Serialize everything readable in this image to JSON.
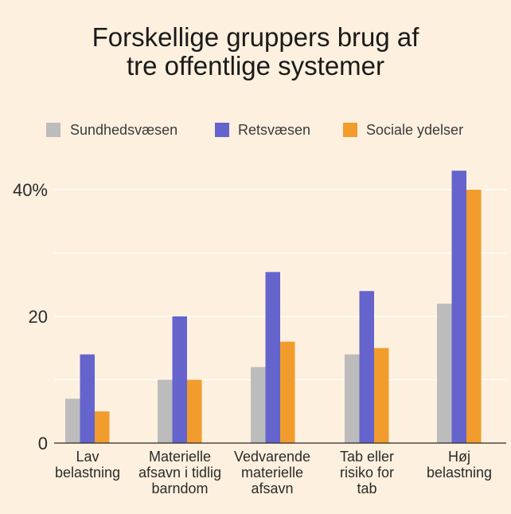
{
  "chart_data": {
    "type": "bar",
    "title_lines": [
      "Forskellige gruppers brug af",
      "tre offentlige systemer"
    ],
    "categories": [
      [
        "Lav",
        "belastning"
      ],
      [
        "Materielle",
        "afsavn i tidlig",
        "barndom"
      ],
      [
        "Vedvarende",
        "materielle",
        "afsavn"
      ],
      [
        "Tab eller",
        "risiko for",
        "tab"
      ],
      [
        "Høj",
        "belastning"
      ]
    ],
    "series": [
      {
        "name": "Sundhedsvæsen",
        "color": "#bcbcbc",
        "values": [
          7,
          10,
          12,
          14,
          22
        ]
      },
      {
        "name": "Retsvæsen",
        "color": "#6564cc",
        "values": [
          14,
          20,
          27,
          24,
          43
        ]
      },
      {
        "name": "Sociale ydelser",
        "color": "#f19c2c",
        "values": [
          5,
          10,
          16,
          15,
          40
        ]
      }
    ],
    "yticks": [
      {
        "value": 0,
        "label": "0"
      },
      {
        "value": 20,
        "label": "20"
      },
      {
        "value": 40,
        "label": "40%"
      }
    ],
    "gridlines": [
      10,
      20,
      30,
      40
    ],
    "ylim": [
      0,
      45
    ],
    "legend_position": "top",
    "xlabel": "",
    "ylabel": ""
  }
}
